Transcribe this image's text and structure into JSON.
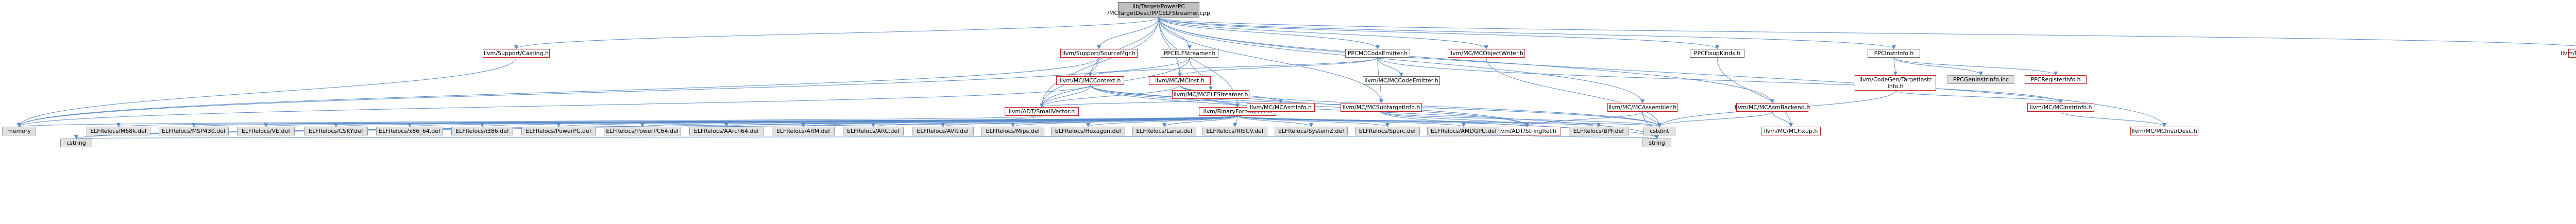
{
  "root": "lib/Target/PowerPC\n/MCTargetDesc/PPCELFStreamer.cpp",
  "headers": {
    "support_casting": "llvm/Support/Casting.h",
    "support_sourcemgr": "llvm/Support/SourceMgr.h",
    "ppcelfstreamer": "PPCELFStreamer.h",
    "ppcmccodeemitter": "PPCMCCodeEmitter.h",
    "mcobjectwriter": "llvm/MC/MCObjectWriter.h",
    "ppcfixupkinds": "PPCFixupKinds.h",
    "ppcinstrinfo": "PPCInstrInfo.h",
    "mcsymbolelf": "llvm/MC/MCSymbolELF.h",
    "mcelfstreamer": "llvm/MC/MCELFStreamer.h",
    "mccontext": "llvm/MC/MCContext.h",
    "mcinst": "llvm/MC/MCInst.h",
    "mccodeemitter": "llvm/MC/MCCodeEmitter.h",
    "codegen_targetinstrinfo": "llvm/CodeGen/TargetInstr\nInfo.h",
    "ppcgeninstrinfo": "PPCGenInstrInfo.inc",
    "ppcregisterinfo": "PPCRegisterInfo.h",
    "smallvector": "llvm/ADT/SmallVector.h",
    "binaryformat_elf": "llvm/BinaryFormat/ELF.h",
    "mcasminfo": "llvm/MC/MCAsmInfo.h",
    "mcsubtargetinfo": "llvm/MC/MCSubtargetInfo.h",
    "mcassembler": "llvm/MC/MCAssembler.h",
    "mcasmbackend": "llvm/MC/MCAsmBackend.h",
    "mcinstrinfo": "llvm/MC/MCInstrInfo.h",
    "mcinstrdesc": "llvm/MC/MCInstrDesc.h",
    "mcfixup": "llvm/MC/MCFixup.h",
    "stringref": "llvm/ADT/StringRef.h",
    "memory": "memory",
    "cstdint": "cstdint",
    "cstring": "cstring",
    "string": "string",
    "elfrelocs_m68k": "ELFRelocs/M68k.def",
    "elfrelocs_msp430": "ELFRelocs/MSP430.def",
    "elfrelocs_ve": "ELFRelocs/VE.def",
    "elfrelocs_csky": "ELFRelocs/CSKY.def",
    "elfrelocs_x86_64": "ELFRelocs/x86_64.def",
    "elfrelocs_i386": "ELFRelocs/i386.def",
    "elfrelocs_powerpc": "ELFRelocs/PowerPC.def",
    "elfrelocs_powerpc64": "ELFRelocs/PowerPC64.def",
    "elfrelocs_aarch64": "ELFRelocs/AArch64.def",
    "elfrelocs_arm": "ELFRelocs/ARM.def",
    "elfrelocs_arc": "ELFRelocs/ARC.def",
    "elfrelocs_avr": "ELFRelocs/AVR.def",
    "elfrelocs_mips": "ELFRelocs/Mips.def",
    "elfrelocs_hexagon": "ELFRelocs/Hexagon.def",
    "elfrelocs_lanai": "ELFRelocs/Lanai.def",
    "elfrelocs_riscv": "ELFRelocs/RISCV.def",
    "elfrelocs_systemz": "ELFRelocs/SystemZ.def",
    "elfrelocs_sparc": "ELFRelocs/Sparc.def",
    "elfrelocs_amdgpu": "ELFRelocs/AMDGPU.def",
    "elfrelocs_bpf": "ELFRelocs/BPF.def"
  },
  "colors": {
    "edge": "#5b8bc9",
    "documented_border": "#c42121",
    "plain_border": "#666666",
    "undocumented_fill": "#e0e0e0",
    "root_fill": "#bfbfbf"
  }
}
